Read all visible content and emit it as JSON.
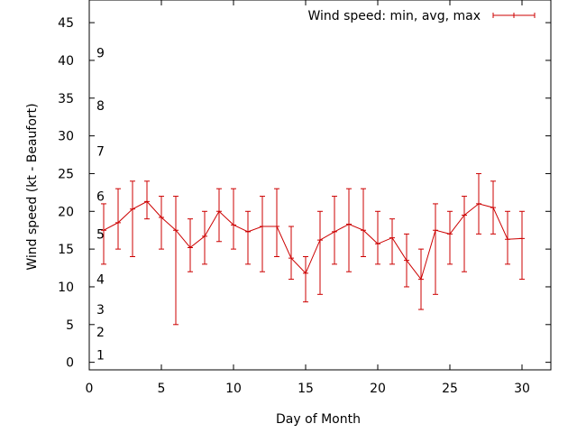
{
  "chart_data": {
    "type": "line",
    "title": "",
    "xlabel": "Day of Month",
    "ylabel": "Wind speed (kt - Beaufort)",
    "xlim": [
      0,
      32
    ],
    "ylim": [
      -1,
      48
    ],
    "grid": false,
    "legend_position": "top-right",
    "x_ticks": [
      0,
      5,
      10,
      15,
      20,
      25,
      30
    ],
    "y_ticks": [
      0,
      5,
      10,
      15,
      20,
      25,
      30,
      35,
      40,
      45
    ],
    "beaufort_labels": [
      {
        "label": "1",
        "y": 1
      },
      {
        "label": "2",
        "y": 4
      },
      {
        "label": "3",
        "y": 7
      },
      {
        "label": "4",
        "y": 11
      },
      {
        "label": "5",
        "y": 17
      },
      {
        "label": "6",
        "y": 22
      },
      {
        "label": "7",
        "y": 28
      },
      {
        "label": "8",
        "y": 34
      },
      {
        "label": "9",
        "y": 41
      }
    ],
    "series": [
      {
        "name": "Wind speed: min, avg, max",
        "color": "#cc0000",
        "points": [
          {
            "x": 1,
            "min": 13,
            "avg": 17.5,
            "max": 21
          },
          {
            "x": 2,
            "min": 15,
            "avg": 18.5,
            "max": 23
          },
          {
            "x": 3,
            "min": 14,
            "avg": 20.3,
            "max": 24
          },
          {
            "x": 4,
            "min": 19,
            "avg": 21.3,
            "max": 24
          },
          {
            "x": 5,
            "min": 15,
            "avg": 19.2,
            "max": 22
          },
          {
            "x": 6,
            "min": 5,
            "avg": 17.5,
            "max": 22
          },
          {
            "x": 7,
            "min": 12,
            "avg": 15.2,
            "max": 19
          },
          {
            "x": 8,
            "min": 13,
            "avg": 16.7,
            "max": 20
          },
          {
            "x": 9,
            "min": 16,
            "avg": 20.0,
            "max": 23
          },
          {
            "x": 10,
            "min": 15,
            "avg": 18.2,
            "max": 23
          },
          {
            "x": 11,
            "min": 13,
            "avg": 17.3,
            "max": 20
          },
          {
            "x": 12,
            "min": 12,
            "avg": 18.0,
            "max": 22
          },
          {
            "x": 13,
            "min": 14,
            "avg": 18.0,
            "max": 23
          },
          {
            "x": 14,
            "min": 11,
            "avg": 13.8,
            "max": 18
          },
          {
            "x": 15,
            "min": 8,
            "avg": 11.8,
            "max": 14
          },
          {
            "x": 16,
            "min": 9,
            "avg": 16.2,
            "max": 20
          },
          {
            "x": 17,
            "min": 13,
            "avg": 17.3,
            "max": 22
          },
          {
            "x": 18,
            "min": 12,
            "avg": 18.3,
            "max": 23
          },
          {
            "x": 19,
            "min": 14,
            "avg": 17.5,
            "max": 23
          },
          {
            "x": 20,
            "min": 13,
            "avg": 15.7,
            "max": 20
          },
          {
            "x": 21,
            "min": 13,
            "avg": 16.5,
            "max": 19
          },
          {
            "x": 22,
            "min": 10,
            "avg": 13.5,
            "max": 17
          },
          {
            "x": 23,
            "min": 7,
            "avg": 11.0,
            "max": 15
          },
          {
            "x": 24,
            "min": 9,
            "avg": 17.5,
            "max": 21
          },
          {
            "x": 25,
            "min": 13,
            "avg": 17.0,
            "max": 20
          },
          {
            "x": 26,
            "min": 12,
            "avg": 19.5,
            "max": 22
          },
          {
            "x": 27,
            "min": 17,
            "avg": 21.0,
            "max": 25
          },
          {
            "x": 28,
            "min": 17,
            "avg": 20.5,
            "max": 24
          },
          {
            "x": 29,
            "min": 13,
            "avg": 16.3,
            "max": 20
          },
          {
            "x": 30,
            "min": 11,
            "avg": 16.4,
            "max": 20
          }
        ]
      }
    ]
  }
}
